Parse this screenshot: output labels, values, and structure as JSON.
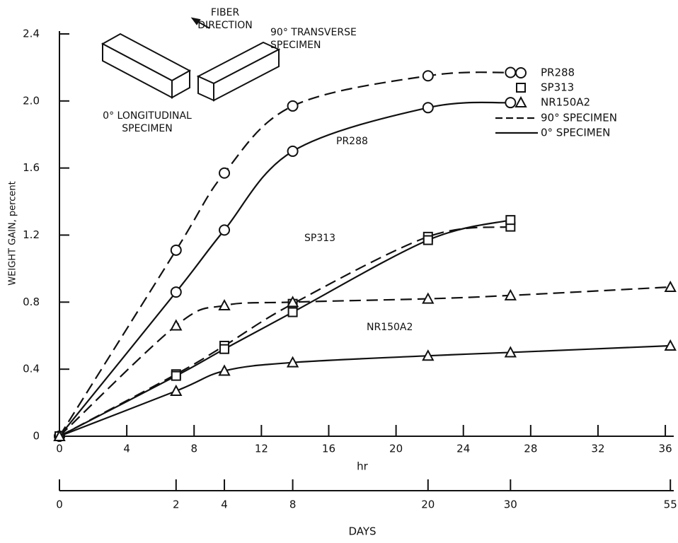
{
  "chart_data": {
    "type": "line",
    "ylabel": "WEIGHT GAIN, percent",
    "xlabel": "hr",
    "x2label": "DAYS",
    "xlim": [
      0,
      36.5
    ],
    "ylim": [
      0,
      2.4
    ],
    "xticks": [
      0,
      4,
      8,
      12,
      16,
      20,
      24,
      28,
      32,
      36
    ],
    "x2ticks": [
      {
        "value": 0,
        "label": "0"
      },
      {
        "value": 6.93,
        "label": "2"
      },
      {
        "value": 9.8,
        "label": "4"
      },
      {
        "value": 13.86,
        "label": "8"
      },
      {
        "value": 21.9,
        "label": "20"
      },
      {
        "value": 26.8,
        "label": "30"
      },
      {
        "value": 36.3,
        "label": "55"
      }
    ],
    "yticks": [
      0,
      0.4,
      0.8,
      1.2,
      1.6,
      {
        "value": 2,
        "label": "2.0"
      },
      2.4
    ],
    "color": "#111111",
    "series": [
      {
        "name": "PR288",
        "marker": "circle",
        "curves": [
          {
            "dash": true,
            "x": [
              0,
              6.93,
              9.8,
              13.86,
              21.9,
              26.8
            ],
            "values": [
              0,
              1.11,
              1.57,
              1.97,
              2.15,
              2.17
            ]
          },
          {
            "dash": false,
            "x": [
              0,
              6.93,
              9.8,
              13.86,
              21.9,
              26.8
            ],
            "values": [
              0,
              0.86,
              1.23,
              1.7,
              1.96,
              1.99
            ]
          }
        ]
      },
      {
        "name": "SP313",
        "marker": "square",
        "curves": [
          {
            "dash": true,
            "x": [
              0,
              6.93,
              9.8,
              13.86,
              21.9,
              26.8
            ],
            "values": [
              0,
              0.37,
              0.54,
              0.79,
              1.19,
              1.25
            ]
          },
          {
            "dash": false,
            "x": [
              0,
              6.93,
              9.8,
              13.86,
              21.9,
              26.8
            ],
            "values": [
              0,
              0.36,
              0.52,
              0.74,
              1.17,
              1.29
            ]
          }
        ]
      },
      {
        "name": "NR150A2",
        "marker": "triangle",
        "curves": [
          {
            "dash": true,
            "x": [
              0,
              6.93,
              9.8,
              13.86,
              21.9,
              26.8,
              36.3
            ],
            "values": [
              0,
              0.66,
              0.78,
              0.8,
              0.82,
              0.84,
              0.89
            ]
          },
          {
            "dash": false,
            "x": [
              0,
              6.93,
              9.8,
              13.86,
              21.9,
              26.8,
              36.3
            ],
            "values": [
              0,
              0.27,
              0.39,
              0.44,
              0.48,
              0.5,
              0.54
            ]
          }
        ]
      }
    ],
    "line_styles": [
      {
        "label": "90° SPECIMEN",
        "dash": true
      },
      {
        "label": "0° SPECIMEN",
        "dash": false
      }
    ],
    "annotations": [
      {
        "lines": [
          "PR288"
        ]
      },
      {
        "lines": [
          "SP313"
        ]
      },
      {
        "lines": [
          "NR150A2"
        ]
      },
      {
        "lines": [
          "FIBER",
          "DIRECTION"
        ]
      },
      {
        "lines": [
          "90° TRANSVERSE",
          "SPECIMEN"
        ]
      },
      {
        "lines": [
          "0° LONGITUDINAL",
          "SPECIMEN"
        ]
      }
    ]
  }
}
